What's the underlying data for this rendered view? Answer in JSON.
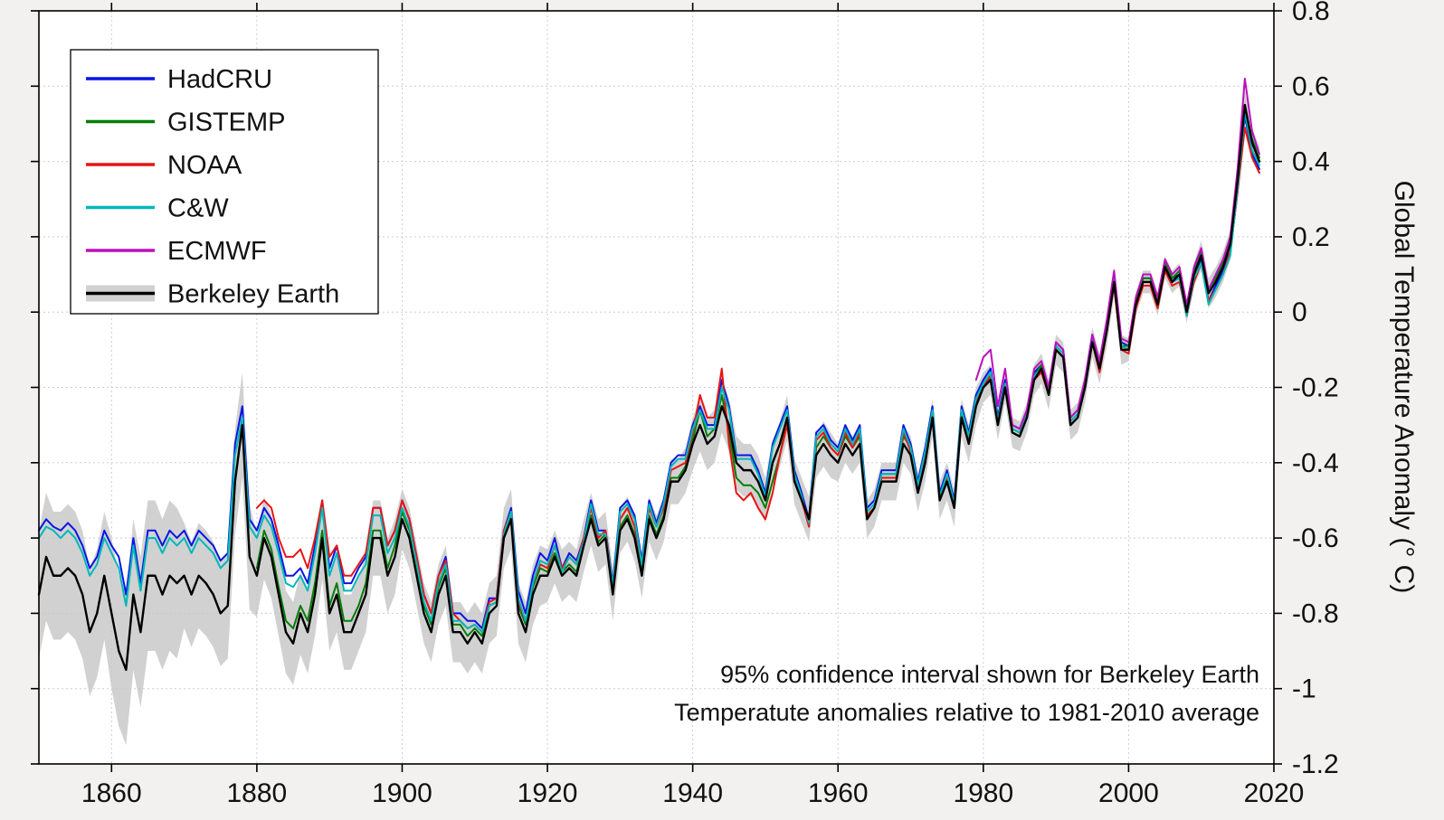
{
  "figure": {
    "background": "#f2f1ef",
    "plot_background": "#ffffff"
  },
  "chart_data": {
    "type": "line",
    "title": "",
    "xlabel": "",
    "ylabel": "Global Temperature Anomaly (° C)",
    "x_range": [
      1850,
      2020
    ],
    "y_range": [
      -1.2,
      0.8
    ],
    "grid": true,
    "legend_position": "top-left",
    "x_ticks": [
      1860,
      1880,
      1900,
      1920,
      1940,
      1960,
      1980,
      2000,
      2020
    ],
    "x_tick_labels": [
      "1860",
      "1880",
      "1900",
      "1920",
      "1940",
      "1960",
      "1980",
      "2000",
      "2020"
    ],
    "y_ticks": [
      0.8,
      0.6,
      0.4,
      0.2,
      0,
      -0.2,
      -0.4,
      -0.6,
      -0.8,
      -1,
      -1.2
    ],
    "y_tick_labels": [
      "0.8",
      "0.6",
      "0.4",
      "0.2",
      "0",
      "-0.2",
      "-0.4",
      "-0.6",
      "-0.8",
      "-1",
      "-1.2"
    ],
    "annotations": [
      "95% confidence interval shown for Berkeley Earth",
      "Temperatute anomalies relative to 1981-2010 average"
    ],
    "band": {
      "series": "Berkeley Earth",
      "color": "#c6c6c6",
      "opacity": 0.8,
      "uncertainty_by_decade": {
        "1850": 0.17,
        "1860": 0.2,
        "1870": 0.14,
        "1880": 0.11,
        "1890": 0.1,
        "1900": 0.08,
        "1910": 0.08,
        "1920": 0.07,
        "1930": 0.06,
        "1940": 0.07,
        "1950": 0.06,
        "1960": 0.05,
        "1970": 0.05,
        "1980": 0.04,
        "1990": 0.04,
        "2000": 0.03,
        "2010": 0.04
      }
    },
    "series": [
      {
        "name": "HadCRU",
        "color": "#0a14e6",
        "start_year": 1850,
        "values": [
          -0.58,
          -0.55,
          -0.57,
          -0.58,
          -0.56,
          -0.58,
          -0.62,
          -0.68,
          -0.65,
          -0.58,
          -0.62,
          -0.65,
          -0.75,
          -0.6,
          -0.72,
          -0.58,
          -0.58,
          -0.62,
          -0.58,
          -0.6,
          -0.58,
          -0.62,
          -0.58,
          -0.6,
          -0.62,
          -0.66,
          -0.64,
          -0.35,
          -0.25,
          -0.55,
          -0.58,
          -0.52,
          -0.55,
          -0.62,
          -0.7,
          -0.7,
          -0.68,
          -0.72,
          -0.62,
          -0.5,
          -0.68,
          -0.62,
          -0.72,
          -0.72,
          -0.68,
          -0.65,
          -0.52,
          -0.52,
          -0.62,
          -0.58,
          -0.5,
          -0.55,
          -0.65,
          -0.75,
          -0.8,
          -0.7,
          -0.65,
          -0.8,
          -0.8,
          -0.82,
          -0.82,
          -0.84,
          -0.76,
          -0.76,
          -0.58,
          -0.52,
          -0.74,
          -0.8,
          -0.7,
          -0.64,
          -0.66,
          -0.6,
          -0.68,
          -0.64,
          -0.66,
          -0.6,
          -0.5,
          -0.58,
          -0.58,
          -0.72,
          -0.52,
          -0.5,
          -0.54,
          -0.66,
          -0.5,
          -0.56,
          -0.5,
          -0.4,
          -0.38,
          -0.38,
          -0.3,
          -0.25,
          -0.3,
          -0.3,
          -0.18,
          -0.25,
          -0.38,
          -0.38,
          -0.38,
          -0.42,
          -0.48,
          -0.35,
          -0.3,
          -0.25,
          -0.42,
          -0.48,
          -0.55,
          -0.32,
          -0.3,
          -0.34,
          -0.36,
          -0.3,
          -0.34,
          -0.3,
          -0.52,
          -0.5,
          -0.42,
          -0.42,
          -0.42,
          -0.3,
          -0.35,
          -0.45,
          -0.36,
          -0.25,
          -0.48,
          -0.42,
          -0.5,
          -0.25,
          -0.32,
          -0.22,
          -0.18,
          -0.15,
          -0.28,
          -0.18,
          -0.3,
          -0.31,
          -0.26,
          -0.16,
          -0.14,
          -0.2,
          -0.08,
          -0.1,
          -0.28,
          -0.26,
          -0.18,
          -0.06,
          -0.14,
          -0.03,
          0.1,
          -0.08,
          -0.09,
          0.03,
          0.09,
          0.09,
          0.03,
          0.13,
          0.09,
          0.1,
          0.0,
          0.1,
          0.14,
          0.03,
          0.07,
          0.11,
          0.16,
          0.32,
          0.52,
          0.42,
          0.38
        ]
      },
      {
        "name": "GISTEMP",
        "color": "#067d06",
        "start_year": 1880,
        "values": [
          -0.68,
          -0.58,
          -0.63,
          -0.73,
          -0.82,
          -0.84,
          -0.78,
          -0.82,
          -0.72,
          -0.58,
          -0.78,
          -0.72,
          -0.82,
          -0.82,
          -0.78,
          -0.72,
          -0.58,
          -0.58,
          -0.68,
          -0.62,
          -0.53,
          -0.58,
          -0.68,
          -0.78,
          -0.83,
          -0.73,
          -0.68,
          -0.83,
          -0.83,
          -0.86,
          -0.84,
          -0.86,
          -0.78,
          -0.77,
          -0.59,
          -0.54,
          -0.78,
          -0.83,
          -0.73,
          -0.68,
          -0.69,
          -0.64,
          -0.69,
          -0.67,
          -0.69,
          -0.61,
          -0.54,
          -0.61,
          -0.59,
          -0.74,
          -0.57,
          -0.54,
          -0.59,
          -0.69,
          -0.54,
          -0.59,
          -0.54,
          -0.44,
          -0.44,
          -0.41,
          -0.34,
          -0.26,
          -0.33,
          -0.31,
          -0.22,
          -0.32,
          -0.44,
          -0.46,
          -0.46,
          -0.48,
          -0.52,
          -0.45,
          -0.38,
          -0.29,
          -0.44,
          -0.5,
          -0.55,
          -0.36,
          -0.33,
          -0.36,
          -0.38,
          -0.33,
          -0.36,
          -0.33,
          -0.54,
          -0.52,
          -0.43,
          -0.43,
          -0.43,
          -0.33,
          -0.36,
          -0.46,
          -0.38,
          -0.26,
          -0.49,
          -0.43,
          -0.51,
          -0.26,
          -0.33,
          -0.23,
          -0.19,
          -0.17,
          -0.29,
          -0.19,
          -0.31,
          -0.32,
          -0.27,
          -0.17,
          -0.14,
          -0.21,
          -0.09,
          -0.11,
          -0.29,
          -0.27,
          -0.19,
          -0.07,
          -0.14,
          -0.04,
          0.09,
          -0.09,
          -0.09,
          0.03,
          0.09,
          0.09,
          0.03,
          0.13,
          0.09,
          0.11,
          0.01,
          0.11,
          0.16,
          0.06,
          0.09,
          0.13,
          0.19,
          0.36,
          0.54,
          0.46,
          0.41
        ]
      },
      {
        "name": "NOAA",
        "color": "#e81414",
        "start_year": 1880,
        "values": [
          -0.52,
          -0.5,
          -0.52,
          -0.6,
          -0.65,
          -0.65,
          -0.63,
          -0.68,
          -0.6,
          -0.5,
          -0.65,
          -0.62,
          -0.7,
          -0.7,
          -0.67,
          -0.64,
          -0.52,
          -0.52,
          -0.62,
          -0.58,
          -0.5,
          -0.55,
          -0.65,
          -0.75,
          -0.8,
          -0.7,
          -0.66,
          -0.8,
          -0.82,
          -0.84,
          -0.83,
          -0.85,
          -0.77,
          -0.76,
          -0.58,
          -0.53,
          -0.77,
          -0.82,
          -0.72,
          -0.67,
          -0.68,
          -0.62,
          -0.68,
          -0.65,
          -0.67,
          -0.6,
          -0.52,
          -0.6,
          -0.58,
          -0.73,
          -0.55,
          -0.52,
          -0.57,
          -0.67,
          -0.52,
          -0.57,
          -0.52,
          -0.42,
          -0.41,
          -0.4,
          -0.32,
          -0.22,
          -0.28,
          -0.28,
          -0.15,
          -0.35,
          -0.48,
          -0.5,
          -0.48,
          -0.52,
          -0.55,
          -0.48,
          -0.38,
          -0.3,
          -0.44,
          -0.5,
          -0.57,
          -0.34,
          -0.32,
          -0.36,
          -0.38,
          -0.32,
          -0.36,
          -0.32,
          -0.54,
          -0.52,
          -0.44,
          -0.44,
          -0.44,
          -0.32,
          -0.37,
          -0.47,
          -0.38,
          -0.27,
          -0.5,
          -0.44,
          -0.52,
          -0.27,
          -0.34,
          -0.24,
          -0.2,
          -0.17,
          -0.3,
          -0.2,
          -0.32,
          -0.33,
          -0.28,
          -0.18,
          -0.16,
          -0.22,
          -0.1,
          -0.12,
          -0.3,
          -0.28,
          -0.2,
          -0.08,
          -0.16,
          -0.05,
          0.07,
          -0.1,
          -0.11,
          0.01,
          0.07,
          0.07,
          0.01,
          0.11,
          0.07,
          0.08,
          -0.01,
          0.08,
          0.13,
          0.03,
          0.06,
          0.1,
          0.16,
          0.32,
          0.49,
          0.41,
          0.37
        ]
      },
      {
        "name": "C&W",
        "color": "#00b8b8",
        "start_year": 1850,
        "values": [
          -0.6,
          -0.57,
          -0.58,
          -0.6,
          -0.58,
          -0.6,
          -0.64,
          -0.7,
          -0.67,
          -0.6,
          -0.64,
          -0.68,
          -0.78,
          -0.62,
          -0.74,
          -0.6,
          -0.6,
          -0.64,
          -0.6,
          -0.62,
          -0.6,
          -0.64,
          -0.6,
          -0.62,
          -0.64,
          -0.68,
          -0.66,
          -0.38,
          -0.28,
          -0.57,
          -0.6,
          -0.54,
          -0.57,
          -0.64,
          -0.72,
          -0.73,
          -0.7,
          -0.74,
          -0.64,
          -0.52,
          -0.7,
          -0.64,
          -0.74,
          -0.74,
          -0.7,
          -0.67,
          -0.54,
          -0.54,
          -0.64,
          -0.6,
          -0.52,
          -0.57,
          -0.67,
          -0.77,
          -0.82,
          -0.72,
          -0.67,
          -0.82,
          -0.82,
          -0.84,
          -0.83,
          -0.85,
          -0.78,
          -0.77,
          -0.59,
          -0.53,
          -0.76,
          -0.82,
          -0.72,
          -0.66,
          -0.67,
          -0.62,
          -0.69,
          -0.65,
          -0.67,
          -0.61,
          -0.51,
          -0.59,
          -0.59,
          -0.73,
          -0.53,
          -0.51,
          -0.55,
          -0.67,
          -0.51,
          -0.57,
          -0.51,
          -0.41,
          -0.39,
          -0.39,
          -0.31,
          -0.26,
          -0.31,
          -0.31,
          -0.2,
          -0.26,
          -0.39,
          -0.39,
          -0.39,
          -0.43,
          -0.49,
          -0.36,
          -0.31,
          -0.26,
          -0.43,
          -0.49,
          -0.56,
          -0.33,
          -0.31,
          -0.35,
          -0.37,
          -0.31,
          -0.35,
          -0.31,
          -0.53,
          -0.51,
          -0.43,
          -0.43,
          -0.43,
          -0.31,
          -0.36,
          -0.46,
          -0.37,
          -0.26,
          -0.49,
          -0.43,
          -0.51,
          -0.26,
          -0.33,
          -0.23,
          -0.19,
          -0.16,
          -0.29,
          -0.19,
          -0.31,
          -0.32,
          -0.27,
          -0.17,
          -0.15,
          -0.21,
          -0.09,
          -0.11,
          -0.29,
          -0.27,
          -0.19,
          -0.07,
          -0.15,
          -0.04,
          0.09,
          -0.09,
          -0.1,
          0.02,
          0.08,
          0.08,
          0.02,
          0.12,
          0.08,
          0.09,
          -0.01,
          0.09,
          0.13,
          0.02,
          0.06,
          0.1,
          0.15,
          0.33,
          0.53,
          0.43,
          0.39
        ]
      },
      {
        "name": "ECMWF",
        "color": "#bb10bb",
        "start_year": 1979,
        "values": [
          -0.18,
          -0.12,
          -0.1,
          -0.25,
          -0.15,
          -0.3,
          -0.31,
          -0.26,
          -0.15,
          -0.13,
          -0.2,
          -0.08,
          -0.1,
          -0.28,
          -0.26,
          -0.18,
          -0.06,
          -0.13,
          -0.02,
          0.11,
          -0.07,
          -0.08,
          0.04,
          0.1,
          0.1,
          0.04,
          0.14,
          0.1,
          0.12,
          0.02,
          0.12,
          0.17,
          0.06,
          0.1,
          0.14,
          0.2,
          0.38,
          0.62,
          0.48,
          0.42
        ]
      },
      {
        "name": "Berkeley Earth",
        "color": "#000000",
        "start_year": 1850,
        "values": [
          -0.75,
          -0.65,
          -0.7,
          -0.7,
          -0.68,
          -0.7,
          -0.75,
          -0.85,
          -0.8,
          -0.7,
          -0.8,
          -0.9,
          -0.95,
          -0.75,
          -0.85,
          -0.7,
          -0.7,
          -0.75,
          -0.7,
          -0.72,
          -0.7,
          -0.75,
          -0.7,
          -0.72,
          -0.75,
          -0.8,
          -0.78,
          -0.45,
          -0.3,
          -0.65,
          -0.7,
          -0.6,
          -0.65,
          -0.75,
          -0.85,
          -0.88,
          -0.8,
          -0.85,
          -0.75,
          -0.6,
          -0.8,
          -0.75,
          -0.85,
          -0.85,
          -0.8,
          -0.75,
          -0.6,
          -0.6,
          -0.7,
          -0.65,
          -0.55,
          -0.6,
          -0.7,
          -0.8,
          -0.85,
          -0.75,
          -0.7,
          -0.85,
          -0.85,
          -0.88,
          -0.85,
          -0.88,
          -0.8,
          -0.78,
          -0.6,
          -0.55,
          -0.8,
          -0.85,
          -0.75,
          -0.7,
          -0.7,
          -0.65,
          -0.7,
          -0.68,
          -0.7,
          -0.62,
          -0.55,
          -0.62,
          -0.6,
          -0.75,
          -0.58,
          -0.55,
          -0.6,
          -0.7,
          -0.55,
          -0.6,
          -0.55,
          -0.45,
          -0.45,
          -0.42,
          -0.35,
          -0.3,
          -0.35,
          -0.33,
          -0.25,
          -0.3,
          -0.4,
          -0.42,
          -0.42,
          -0.45,
          -0.5,
          -0.4,
          -0.35,
          -0.28,
          -0.45,
          -0.5,
          -0.55,
          -0.38,
          -0.35,
          -0.38,
          -0.4,
          -0.35,
          -0.38,
          -0.35,
          -0.55,
          -0.52,
          -0.45,
          -0.45,
          -0.45,
          -0.35,
          -0.38,
          -0.48,
          -0.4,
          -0.28,
          -0.5,
          -0.45,
          -0.52,
          -0.28,
          -0.35,
          -0.25,
          -0.2,
          -0.18,
          -0.3,
          -0.2,
          -0.32,
          -0.33,
          -0.28,
          -0.18,
          -0.15,
          -0.22,
          -0.1,
          -0.12,
          -0.3,
          -0.28,
          -0.2,
          -0.08,
          -0.15,
          -0.05,
          0.08,
          -0.1,
          -0.1,
          0.02,
          0.08,
          0.08,
          0.02,
          0.12,
          0.08,
          0.1,
          0.0,
          0.1,
          0.15,
          0.05,
          0.08,
          0.12,
          0.18,
          0.35,
          0.55,
          0.45,
          0.4
        ]
      }
    ]
  }
}
